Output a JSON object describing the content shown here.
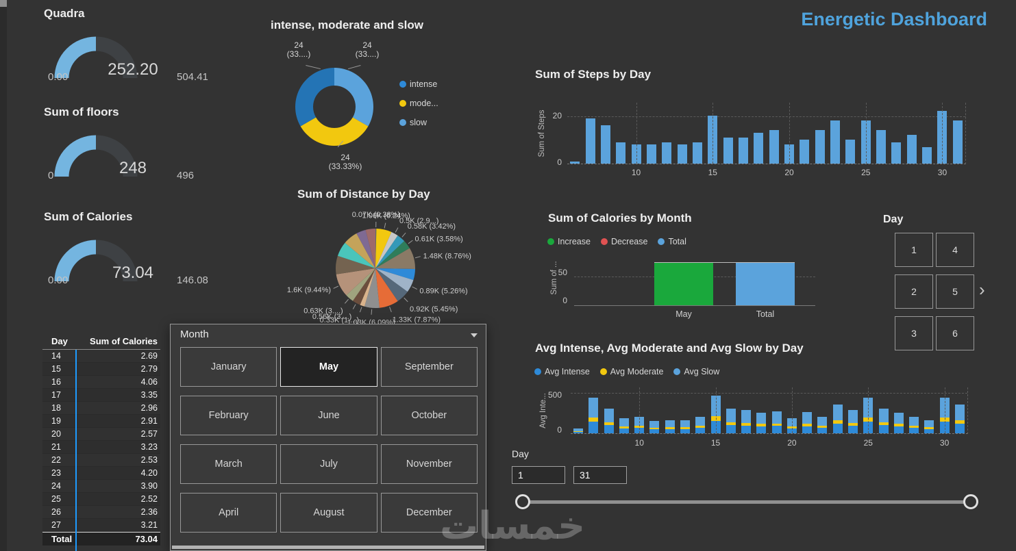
{
  "header": {
    "title": "Energetic Dashboard"
  },
  "watermark_text": "خمسات",
  "gauges": [
    {
      "title": "Quadra",
      "min": "0.00",
      "value": "252.20",
      "max": "504.41",
      "fraction": 0.5,
      "color": "#74b5e0"
    },
    {
      "title": "Sum of floors",
      "min": "0",
      "value": "248",
      "max": "496",
      "fraction": 0.5,
      "color": "#74b5e0"
    },
    {
      "title": "Sum of Calories",
      "min": "0.00",
      "value": "73.04",
      "max": "146.08",
      "fraction": 0.5,
      "color": "#74b5e0"
    }
  ],
  "chart_data": [
    {
      "type": "pie",
      "variant": "donut",
      "title": "intense, moderate and slow",
      "slices": [
        {
          "name": "slow",
          "value": 24,
          "label": "24",
          "pct_label": "(33....)",
          "color": "#5ba3dc"
        },
        {
          "name": "moderate",
          "value": 24,
          "label": "24",
          "pct_label": "(33.33%)",
          "color": "#f2c80f"
        },
        {
          "name": "intense",
          "value": 24,
          "label": "24",
          "pct_label": "(33....)",
          "color": "#2474b5"
        }
      ],
      "legend": [
        {
          "label": "intense",
          "color": "#2e8ad8"
        },
        {
          "label": "mode...",
          "color": "#f2c80f"
        },
        {
          "label": "slow",
          "color": "#5ba3dc"
        }
      ],
      "legend_position": "right"
    },
    {
      "type": "pie",
      "title": "Sum of Distance by Day",
      "slices": [
        {
          "label": "0.07K (0.38%)",
          "value": 0.38,
          "color": "#5f6b6d"
        },
        {
          "label": "1.06K (6.24%)",
          "value": 6.24,
          "color": "#f2c80f"
        },
        {
          "label": "0.5K (2.9...)",
          "value": 2.9,
          "color": "#c7c7c7"
        },
        {
          "label": "0.58K (3.42%)",
          "value": 3.42,
          "color": "#3599b8"
        },
        {
          "label": "0.61K (3.58%)",
          "value": 3.58,
          "color": "#2f7d5a"
        },
        {
          "label": "1.48K (8.76%)",
          "value": 8.76,
          "color": "#8a7a66"
        },
        {
          "label": "",
          "value": 4.5,
          "color": "#2e8ad8"
        },
        {
          "label": "0.89K (5.26%)",
          "value": 5.26,
          "color": "#9fb3c8"
        },
        {
          "label": "0.92K (5.45%)",
          "value": 5.45,
          "color": "#55687a"
        },
        {
          "label": "1.33K (7.87%)",
          "value": 7.87,
          "color": "#e66c37"
        },
        {
          "label": "1.03K (6.09%)",
          "value": 6.09,
          "color": "#8f8f8f"
        },
        {
          "label": "0.33K (1....)",
          "value": 1.9,
          "color": "#d9b38c"
        },
        {
          "label": "0.56K (3....)",
          "value": 3.3,
          "color": "#6b4e3d"
        },
        {
          "label": "0.63K (3....)",
          "value": 3.5,
          "color": "#a0a47e"
        },
        {
          "label": "1.6K (9.44%)",
          "value": 9.44,
          "color": "#b5927a"
        },
        {
          "label": "",
          "value": 7.5,
          "color": "#746350"
        },
        {
          "label": "",
          "value": 6.0,
          "color": "#4ac5bb"
        },
        {
          "label": "",
          "value": 6.0,
          "color": "#c4a35a"
        },
        {
          "label": "",
          "value": 3.91,
          "color": "#7f6a93"
        },
        {
          "label": "",
          "value": 4.0,
          "color": "#9e6a6a"
        }
      ]
    },
    {
      "type": "bar",
      "title": "Sum of Steps by Day",
      "xlabel": "Day",
      "ylabel": "Sum of Steps",
      "yticks": [
        20,
        0
      ],
      "xticks": [
        10,
        15,
        20,
        25,
        30
      ],
      "ylim": [
        0,
        25
      ],
      "bar_color": "#5ba3dc",
      "days": [
        6,
        7,
        8,
        9,
        10,
        11,
        12,
        13,
        14,
        15,
        16,
        17,
        18,
        19,
        20,
        21,
        22,
        23,
        24,
        25,
        26,
        27,
        28,
        29,
        30,
        31
      ],
      "values": [
        1,
        19,
        16,
        9,
        8,
        8,
        9,
        8,
        9,
        20,
        11,
        11,
        13,
        14,
        8,
        10,
        14,
        18,
        10,
        18,
        14,
        9,
        12,
        7,
        22,
        18
      ]
    },
    {
      "type": "bar",
      "title": "Sum of Calories by Month",
      "ylabel": "Sum of ...",
      "yticks": [
        50,
        0
      ],
      "ylim": [
        0,
        80
      ],
      "categories": [
        "May",
        "Total"
      ],
      "values": [
        73.04,
        73.04
      ],
      "colors": [
        "#1aa83c",
        "#5ba3dc"
      ],
      "legend": [
        {
          "label": "Increase",
          "color": "#1aa83c"
        },
        {
          "label": "Decrease",
          "color": "#e05252"
        },
        {
          "label": "Total",
          "color": "#5ba3dc"
        }
      ]
    },
    {
      "type": "bar",
      "variant": "stacked",
      "title": "Avg Intense, Avg Moderate and Avg Slow by Day",
      "ylabel": "Avg Inte...",
      "yticks": [
        500,
        0
      ],
      "xticks": [
        10,
        15,
        20,
        25,
        30
      ],
      "ylim": [
        0,
        560
      ],
      "days": [
        6,
        7,
        8,
        9,
        10,
        11,
        12,
        13,
        14,
        15,
        16,
        17,
        18,
        19,
        20,
        21,
        22,
        23,
        24,
        25,
        26,
        27,
        28,
        29,
        30,
        31
      ],
      "series": [
        {
          "name": "Avg Intense",
          "color": "#2e8ad8",
          "values": [
            20,
            142,
            99,
            59,
            66,
            50,
            53,
            53,
            66,
            152,
            99,
            92,
            83,
            89,
            59,
            86,
            66,
            116,
            92,
            142,
            99,
            83,
            66,
            53,
            142,
            116
          ]
        },
        {
          "name": "Avg Moderate",
          "color": "#f2c80f",
          "values": [
            7,
            52,
            36,
            22,
            24,
            18,
            19,
            19,
            24,
            55,
            36,
            34,
            30,
            32,
            22,
            31,
            24,
            42,
            34,
            52,
            36,
            30,
            24,
            19,
            52,
            42
          ]
        },
        {
          "name": "Avg Slow",
          "color": "#5ba3dc",
          "values": [
            33,
            236,
            165,
            99,
            110,
            83,
            88,
            88,
            110,
            253,
            165,
            154,
            138,
            149,
            99,
            143,
            110,
            193,
            154,
            236,
            165,
            138,
            110,
            88,
            236,
            193
          ]
        }
      ],
      "legend": [
        {
          "label": "Avg Intense",
          "color": "#2e8ad8"
        },
        {
          "label": "Avg Moderate",
          "color": "#f2c80f"
        },
        {
          "label": "Avg Slow",
          "color": "#5ba3dc"
        }
      ]
    }
  ],
  "calories_table": {
    "columns": [
      "Day",
      "Sum of Calories"
    ],
    "rows": [
      [
        "14",
        "2.69"
      ],
      [
        "15",
        "2.79"
      ],
      [
        "16",
        "4.06"
      ],
      [
        "17",
        "3.35"
      ],
      [
        "18",
        "2.96"
      ],
      [
        "19",
        "2.91"
      ],
      [
        "20",
        "2.57"
      ],
      [
        "21",
        "3.23"
      ],
      [
        "22",
        "2.53"
      ],
      [
        "23",
        "4.20"
      ],
      [
        "24",
        "3.90"
      ],
      [
        "25",
        "2.52"
      ],
      [
        "26",
        "2.36"
      ],
      [
        "27",
        "3.21"
      ]
    ],
    "total": {
      "label": "Total",
      "value": "73.04"
    }
  },
  "month_slicer": {
    "title": "Month",
    "options": [
      "January",
      "May",
      "September",
      "February",
      "June",
      "October",
      "March",
      "July",
      "November",
      "April",
      "August",
      "December"
    ],
    "selected": "May"
  },
  "day_slicer": {
    "title": "Day",
    "options": [
      "1",
      "4",
      "2",
      "5",
      "3",
      "6"
    ]
  },
  "day_range": {
    "label": "Day",
    "from": "1",
    "to": "31"
  }
}
